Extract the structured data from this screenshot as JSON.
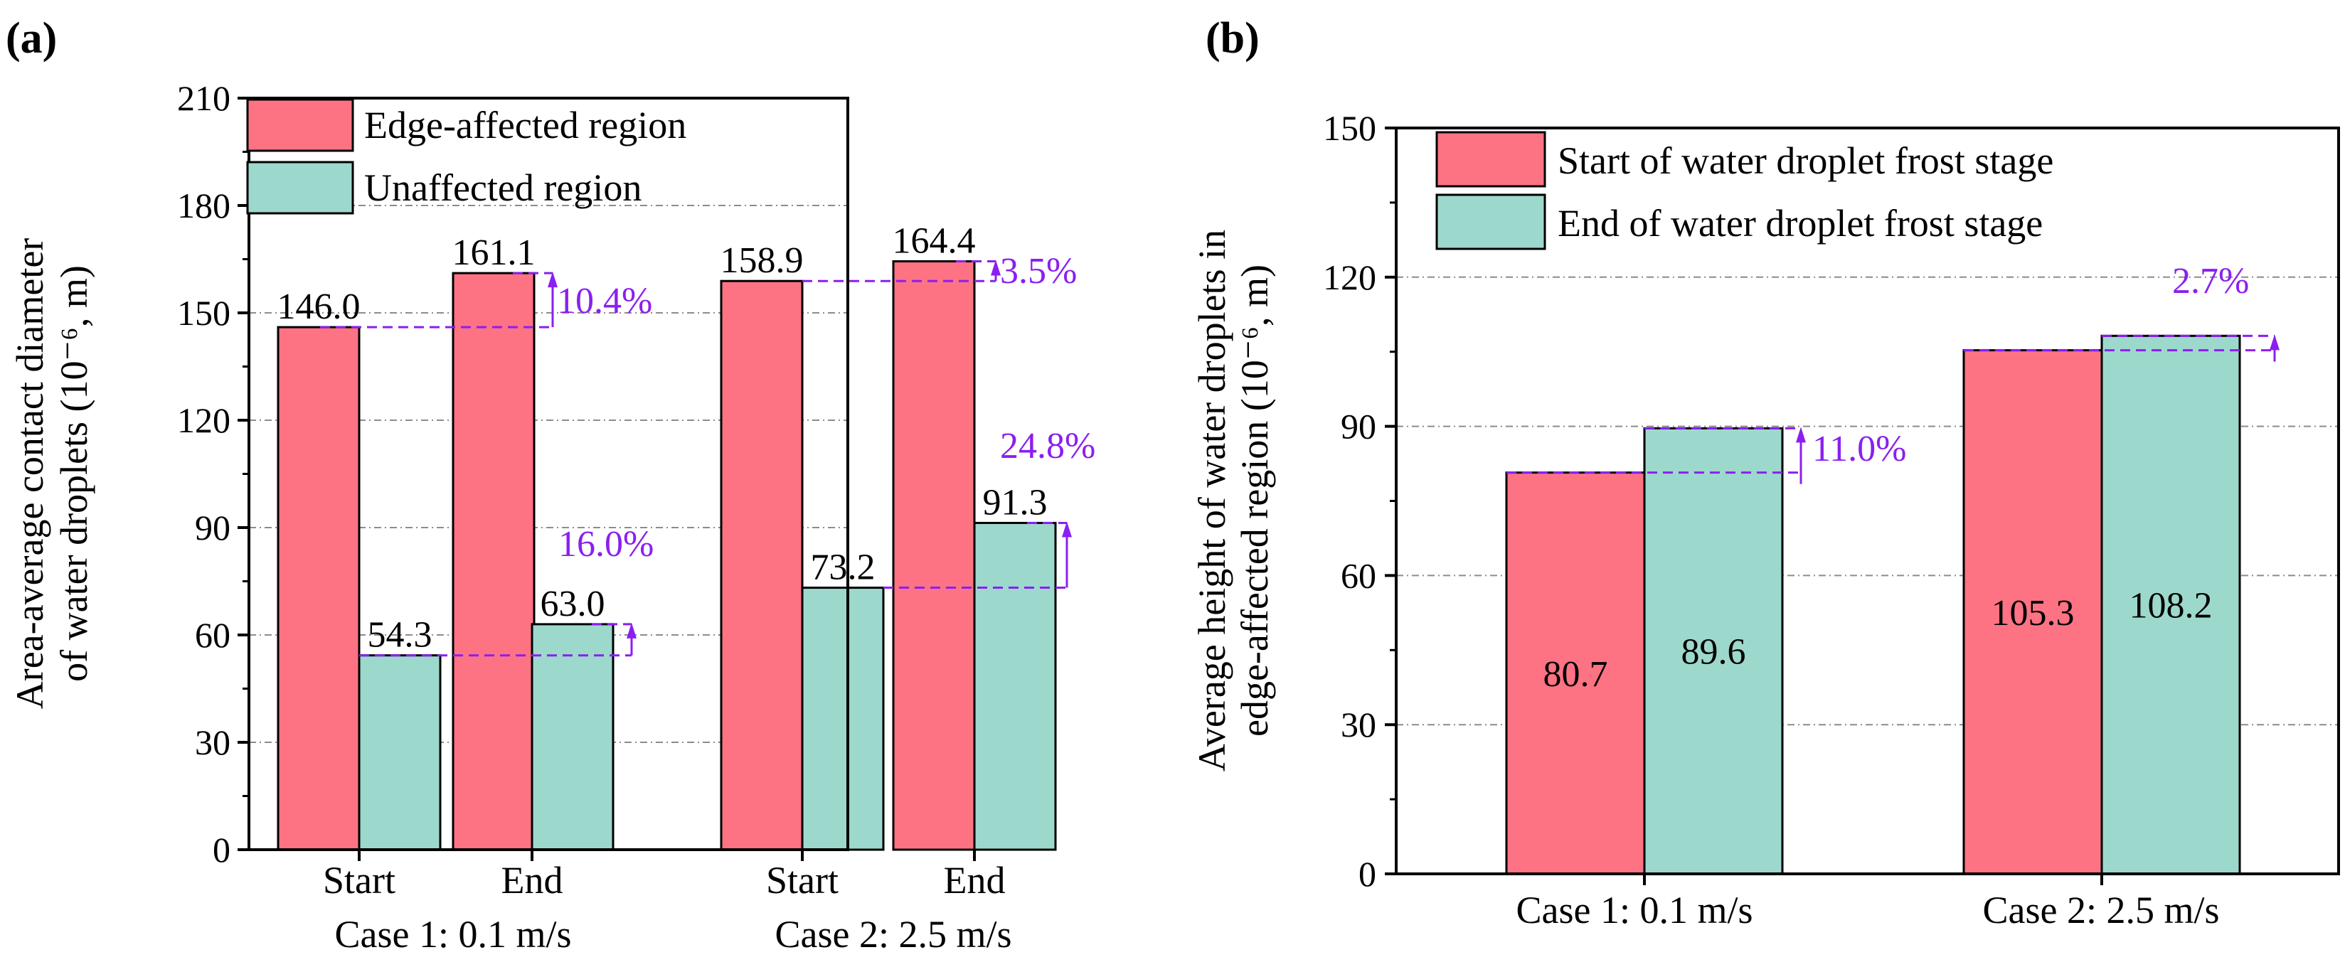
{
  "colors": {
    "edge": "#fd7384",
    "unaffected": "#9dd8cc",
    "annotation": "#8b1ff0",
    "grid": "#8c8c8c"
  },
  "chart_data": [
    {
      "panel": "(a)",
      "type": "bar",
      "ylabel_line1": "Area-average contact diameter",
      "ylabel_line2": "of water droplets (10⁻⁶, m)",
      "ylim": [
        0,
        210
      ],
      "yticks": [
        "0",
        "30",
        "60",
        "90",
        "120",
        "150",
        "180",
        "210"
      ],
      "grid": true,
      "legend_position": "top-left",
      "groups": [
        {
          "name": "Case 1: 0.1 m/s",
          "categories": [
            "Start",
            "End"
          ]
        },
        {
          "name": "Case 2: 2.5 m/s",
          "categories": [
            "Start",
            "End"
          ]
        }
      ],
      "series": [
        {
          "name": "Edge-affected region",
          "values": [
            146.0,
            161.1,
            158.9,
            164.4
          ],
          "labels": [
            "146.0",
            "161.1",
            "158.9",
            "164.4"
          ]
        },
        {
          "name": "Unaffected region",
          "values": [
            54.3,
            63.0,
            73.2,
            91.3
          ],
          "labels": [
            "54.3",
            "63.0",
            "73.2",
            "91.3"
          ]
        }
      ],
      "annotations": [
        "10.4%",
        "16.0%",
        "3.5%",
        "24.8%"
      ]
    },
    {
      "panel": "(b)",
      "type": "bar",
      "ylabel_line1": "Average height of water droplets in",
      "ylabel_line2": "edge-affected region (10⁻⁶, m)",
      "ylim": [
        0,
        150
      ],
      "yticks": [
        "0",
        "30",
        "60",
        "90",
        "120",
        "150"
      ],
      "grid": true,
      "legend_position": "top-left",
      "categories": [
        "Case 1: 0.1 m/s",
        "Case 2: 2.5 m/s"
      ],
      "series": [
        {
          "name": "Start of water droplet frost stage",
          "values": [
            80.7,
            105.3
          ],
          "labels": [
            "80.7",
            "105.3"
          ]
        },
        {
          "name": "End of water droplet frost stage",
          "values": [
            89.6,
            108.2
          ],
          "labels": [
            "89.6",
            "108.2"
          ]
        }
      ],
      "annotations": [
        "11.0%",
        "2.7%"
      ]
    }
  ]
}
